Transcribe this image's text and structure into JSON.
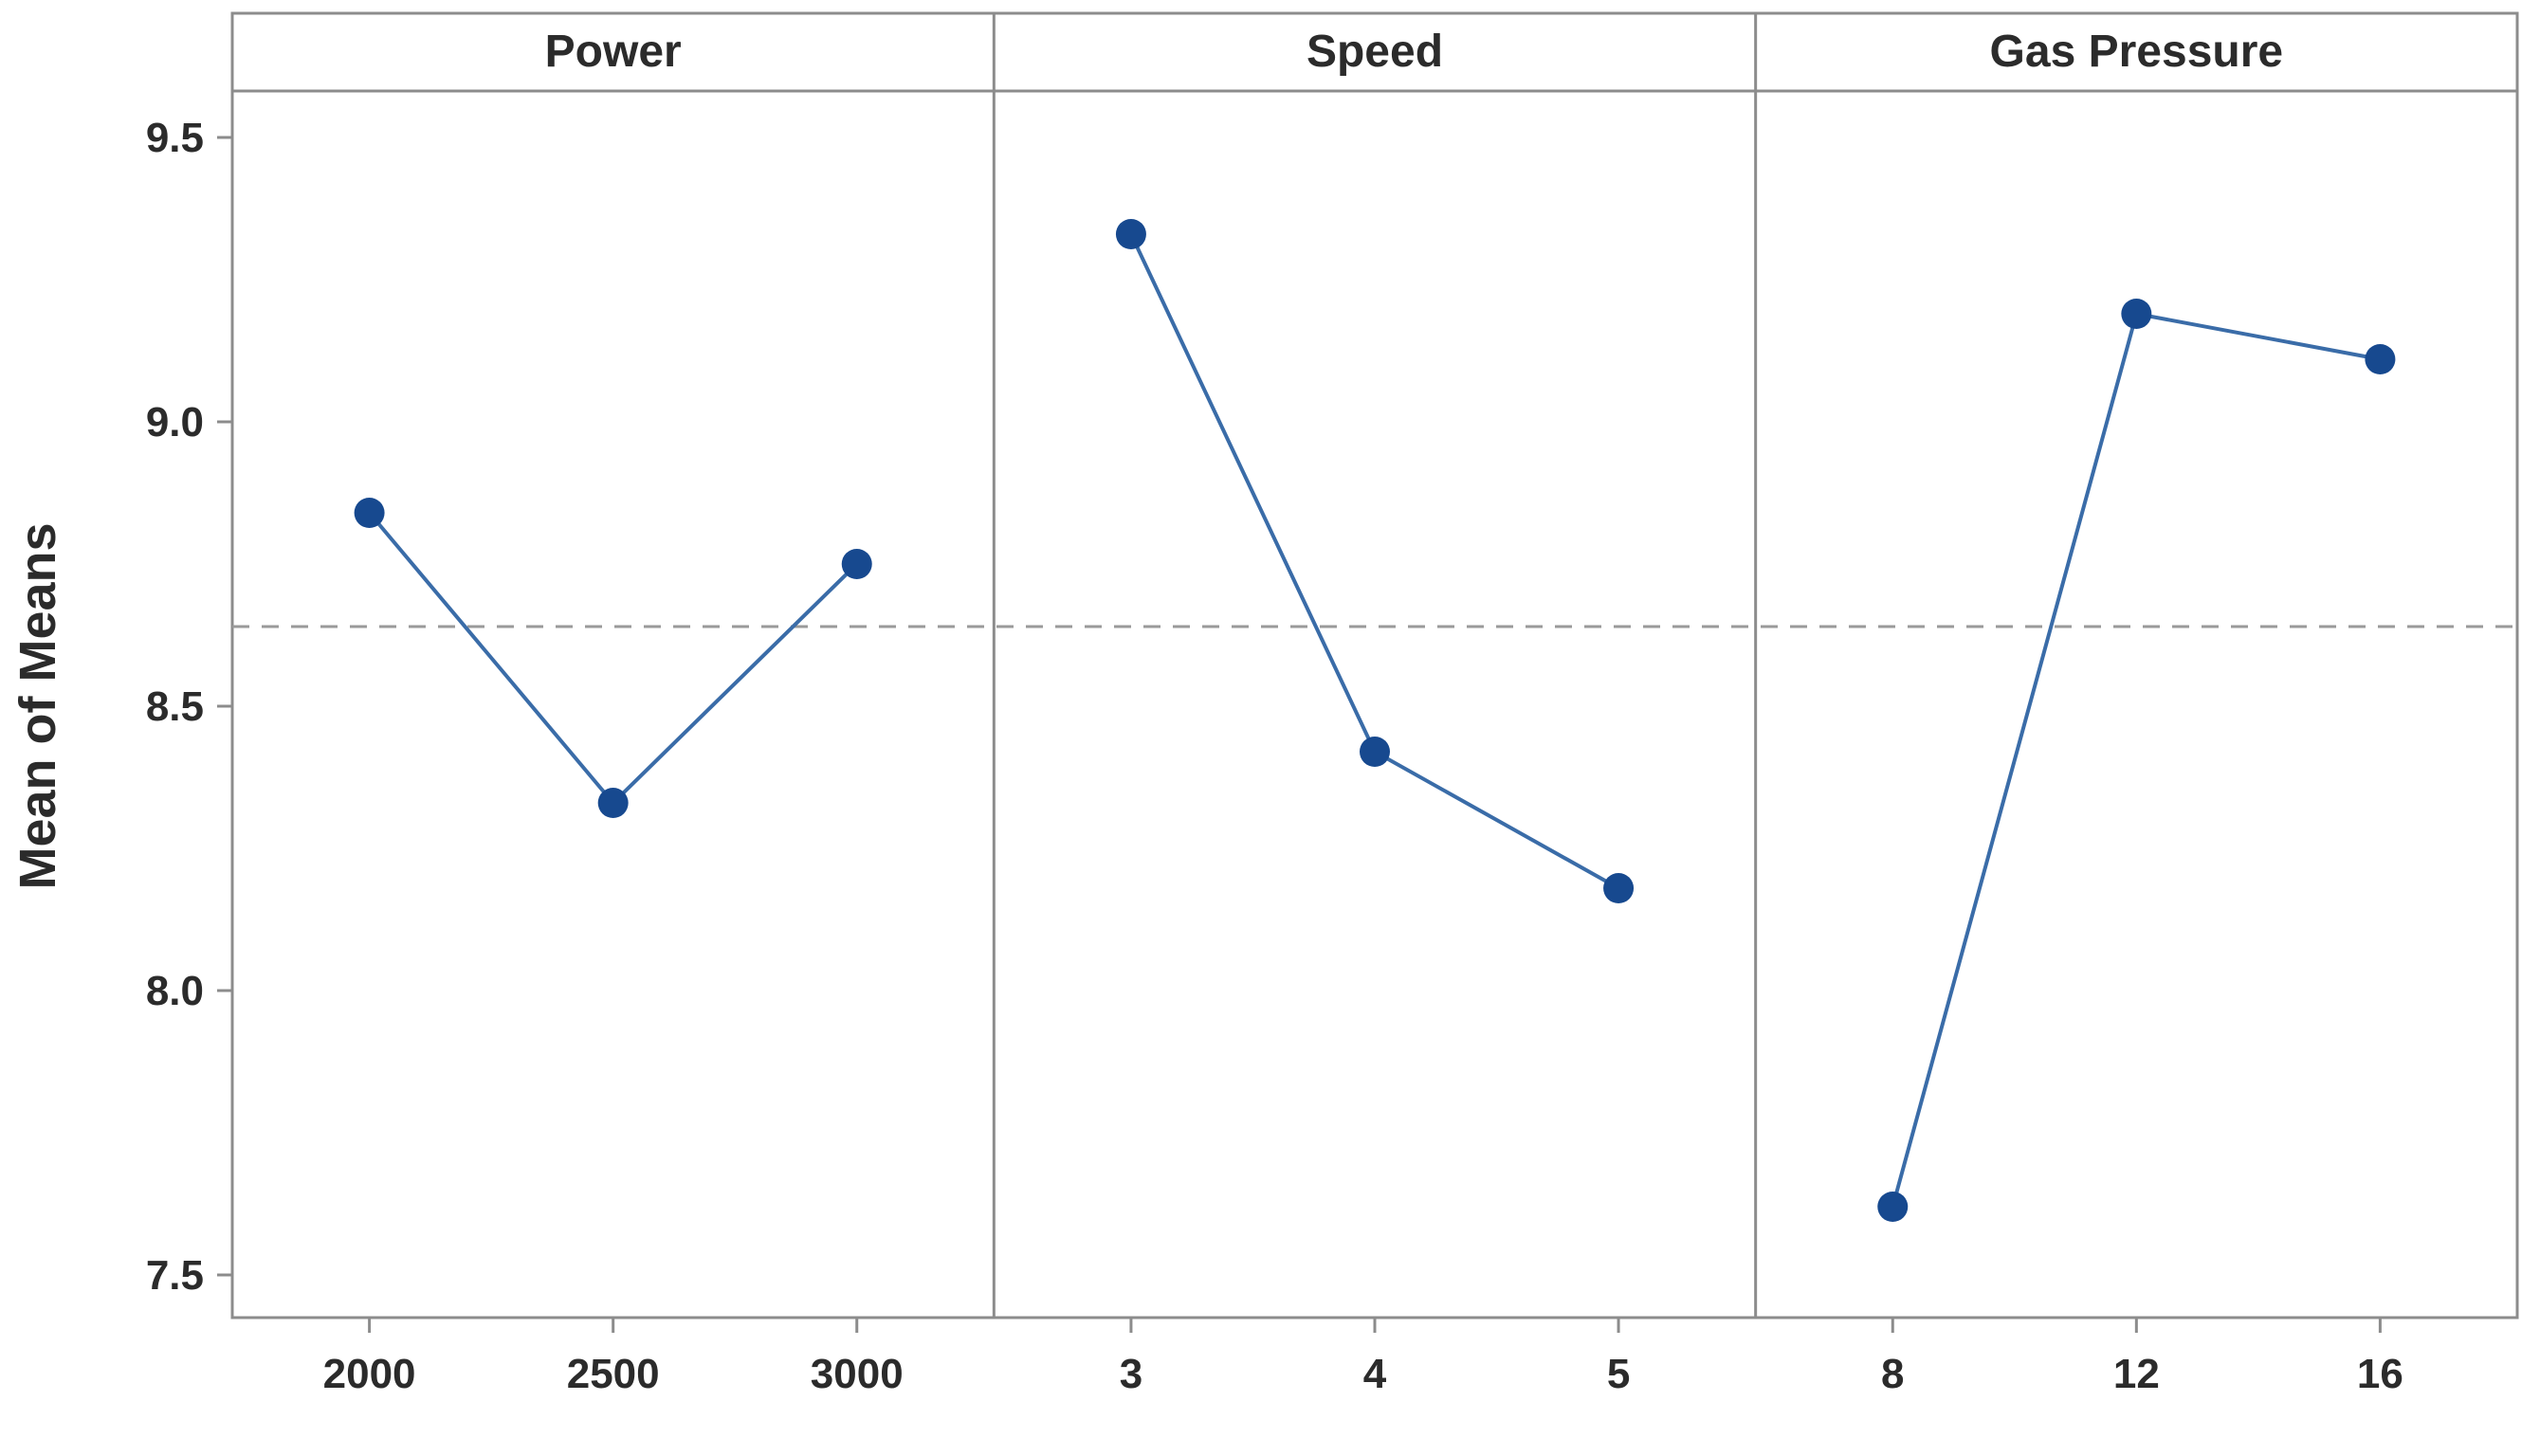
{
  "chart_data": {
    "type": "line",
    "title": "",
    "ylabel": "Mean of Means",
    "ylim": [
      7.5,
      9.5
    ],
    "yticks": [
      7.5,
      8.0,
      8.5,
      9.0,
      9.5
    ],
    "reference_line": 8.64,
    "grid": false,
    "legend": "none",
    "panels": [
      {
        "title": "Power",
        "categories": [
          "2000",
          "2500",
          "3000"
        ],
        "values": [
          8.84,
          8.33,
          8.75
        ]
      },
      {
        "title": "Speed",
        "categories": [
          "3",
          "4",
          "5"
        ],
        "values": [
          9.33,
          8.42,
          8.18
        ]
      },
      {
        "title": "Gas Pressure",
        "categories": [
          "8",
          "12",
          "16"
        ],
        "values": [
          7.62,
          9.19,
          9.11
        ]
      }
    ],
    "colors": {
      "line": "#3a6ca8",
      "marker": "#17498f",
      "frame": "#8c8c8c",
      "reference": "#9a9a9a",
      "text": "#2b2b2b"
    }
  }
}
